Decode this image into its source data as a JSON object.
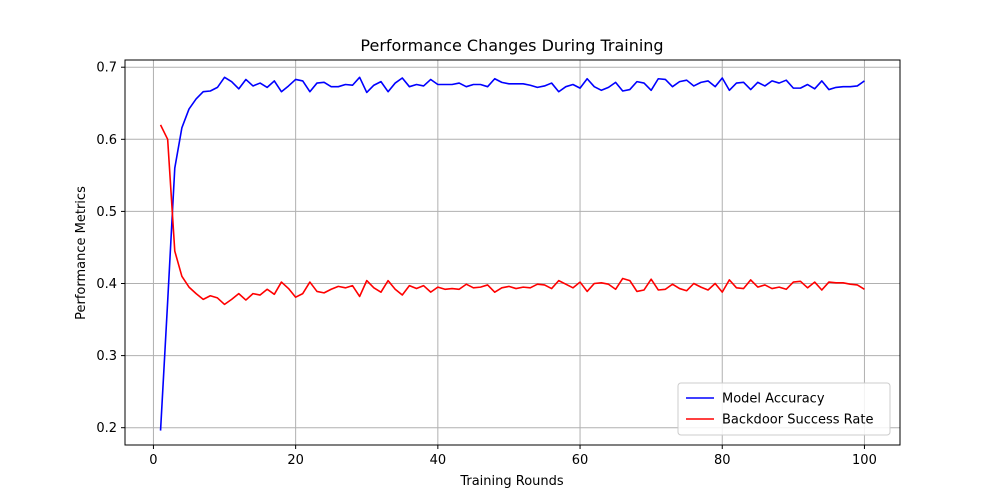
{
  "chart_data": {
    "type": "line",
    "title": "Performance Changes During Training",
    "xlabel": "Training Rounds",
    "ylabel": "Performance Metrics",
    "xlim": [
      -4.0,
      105.0
    ],
    "ylim": [
      0.176,
      0.71
    ],
    "xticks": [
      0,
      20,
      40,
      60,
      80,
      100
    ],
    "yticks": [
      0.2,
      0.3,
      0.4,
      0.5,
      0.6,
      0.7
    ],
    "ytick_labels": [
      "0.2",
      "0.3",
      "0.4",
      "0.5",
      "0.6",
      "0.7"
    ],
    "grid": true,
    "legend_position": "lower-right",
    "series": [
      {
        "name": "Model Accuracy",
        "color": "#0000ff",
        "x": [
          1,
          2,
          3,
          4,
          5,
          6,
          7,
          8,
          9,
          10,
          11,
          12,
          13,
          14,
          15,
          16,
          17,
          18,
          19,
          20,
          21,
          22,
          23,
          24,
          25,
          26,
          27,
          28,
          29,
          30,
          31,
          32,
          33,
          34,
          35,
          36,
          37,
          38,
          39,
          40,
          41,
          42,
          43,
          44,
          45,
          46,
          47,
          48,
          49,
          50,
          51,
          52,
          53,
          54,
          55,
          56,
          57,
          58,
          59,
          60,
          61,
          62,
          63,
          64,
          65,
          66,
          67,
          68,
          69,
          70,
          71,
          72,
          73,
          74,
          75,
          76,
          77,
          78,
          79,
          80,
          81,
          82,
          83,
          84,
          85,
          86,
          87,
          88,
          89,
          90,
          91,
          92,
          93,
          94,
          95,
          96,
          97,
          98,
          99,
          100
        ],
        "values": [
          0.196,
          0.375,
          0.56,
          0.616,
          0.642,
          0.656,
          0.666,
          0.667,
          0.672,
          0.686,
          0.68,
          0.67,
          0.683,
          0.674,
          0.678,
          0.672,
          0.681,
          0.666,
          0.674,
          0.683,
          0.681,
          0.666,
          0.678,
          0.679,
          0.673,
          0.673,
          0.676,
          0.675,
          0.686,
          0.665,
          0.675,
          0.68,
          0.666,
          0.678,
          0.685,
          0.673,
          0.676,
          0.674,
          0.683,
          0.676,
          0.676,
          0.676,
          0.678,
          0.673,
          0.676,
          0.676,
          0.673,
          0.684,
          0.679,
          0.677,
          0.677,
          0.677,
          0.675,
          0.672,
          0.674,
          0.678,
          0.666,
          0.673,
          0.676,
          0.671,
          0.684,
          0.673,
          0.668,
          0.672,
          0.679,
          0.667,
          0.669,
          0.68,
          0.678,
          0.668,
          0.684,
          0.683,
          0.673,
          0.68,
          0.682,
          0.674,
          0.679,
          0.681,
          0.673,
          0.685,
          0.668,
          0.678,
          0.679,
          0.669,
          0.679,
          0.674,
          0.681,
          0.678,
          0.682,
          0.671,
          0.671,
          0.676,
          0.67,
          0.681,
          0.669,
          0.672,
          0.673,
          0.673,
          0.674,
          0.681
        ]
      },
      {
        "name": "Backdoor Success Rate",
        "color": "#ff0000",
        "x": [
          1,
          2,
          3,
          4,
          5,
          6,
          7,
          8,
          9,
          10,
          11,
          12,
          13,
          14,
          15,
          16,
          17,
          18,
          19,
          20,
          21,
          22,
          23,
          24,
          25,
          26,
          27,
          28,
          29,
          30,
          31,
          32,
          33,
          34,
          35,
          36,
          37,
          38,
          39,
          40,
          41,
          42,
          43,
          44,
          45,
          46,
          47,
          48,
          49,
          50,
          51,
          52,
          53,
          54,
          55,
          56,
          57,
          58,
          59,
          60,
          61,
          62,
          63,
          64,
          65,
          66,
          67,
          68,
          69,
          70,
          71,
          72,
          73,
          74,
          75,
          76,
          77,
          78,
          79,
          80,
          81,
          82,
          83,
          84,
          85,
          86,
          87,
          88,
          89,
          90,
          91,
          92,
          93,
          94,
          95,
          96,
          97,
          98,
          99,
          100
        ],
        "values": [
          0.62,
          0.6,
          0.445,
          0.41,
          0.395,
          0.386,
          0.378,
          0.383,
          0.38,
          0.371,
          0.378,
          0.386,
          0.377,
          0.386,
          0.384,
          0.392,
          0.385,
          0.402,
          0.393,
          0.381,
          0.386,
          0.402,
          0.389,
          0.387,
          0.392,
          0.396,
          0.394,
          0.397,
          0.382,
          0.404,
          0.394,
          0.388,
          0.404,
          0.392,
          0.384,
          0.397,
          0.393,
          0.397,
          0.388,
          0.395,
          0.392,
          0.393,
          0.392,
          0.399,
          0.394,
          0.395,
          0.398,
          0.388,
          0.394,
          0.396,
          0.393,
          0.395,
          0.394,
          0.399,
          0.398,
          0.393,
          0.404,
          0.399,
          0.394,
          0.402,
          0.389,
          0.4,
          0.401,
          0.399,
          0.392,
          0.407,
          0.404,
          0.389,
          0.391,
          0.406,
          0.391,
          0.392,
          0.399,
          0.393,
          0.39,
          0.4,
          0.395,
          0.391,
          0.4,
          0.388,
          0.405,
          0.394,
          0.393,
          0.405,
          0.395,
          0.398,
          0.393,
          0.395,
          0.392,
          0.402,
          0.403,
          0.394,
          0.402,
          0.391,
          0.402,
          0.401,
          0.401,
          0.399,
          0.398,
          0.392
        ]
      }
    ]
  }
}
